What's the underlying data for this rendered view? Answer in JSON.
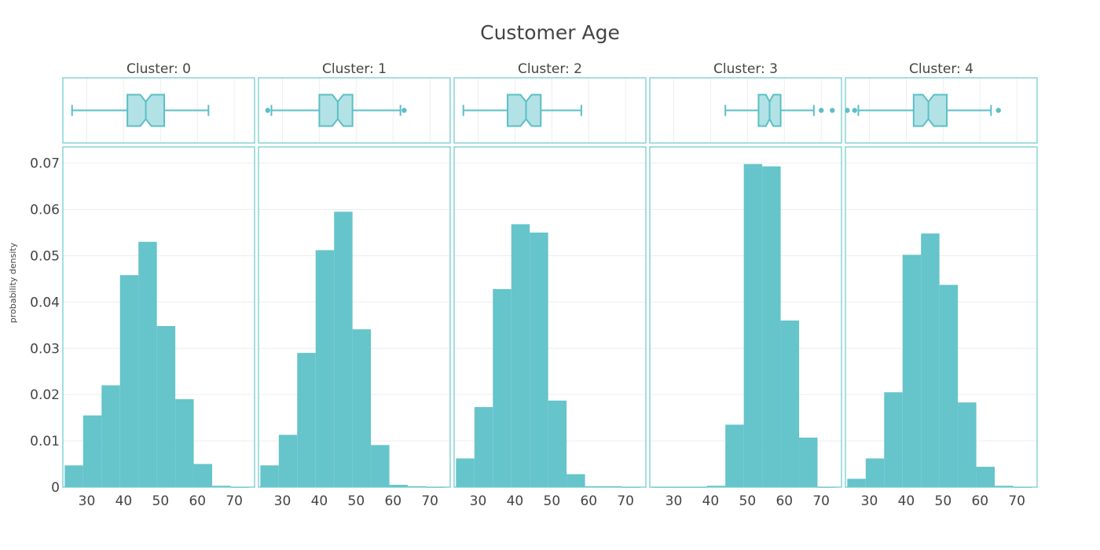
{
  "colors": {
    "bar": "#66c4cb",
    "box_fill": "#b3e2e6",
    "box_line": "#5bbfc6",
    "frame": "#6cc7cc",
    "grid": "#eeeeee"
  },
  "chart_data": {
    "type": "bar",
    "title": "Customer Age",
    "ylabel": "probability density",
    "xlim": [
      23.5,
      75.5
    ],
    "ylim": [
      0,
      0.0735
    ],
    "xticks": [
      30,
      40,
      50,
      60,
      70
    ],
    "yticks": [
      0,
      0.01,
      0.02,
      0.03,
      0.04,
      0.05,
      0.06,
      0.07
    ],
    "ytick_labels": [
      "0",
      "0.01",
      "0.02",
      "0.03",
      "0.04",
      "0.05",
      "0.06",
      "0.07"
    ],
    "bin_edges": [
      24,
      29,
      34,
      39,
      44,
      49,
      54,
      59,
      64,
      69,
      74
    ],
    "panels": [
      {
        "title": "Cluster: 0",
        "density": [
          0.0047,
          0.0155,
          0.022,
          0.0458,
          0.053,
          0.0348,
          0.019,
          0.005,
          0.0003,
          0
        ],
        "box": {
          "min": 26,
          "q1": 41,
          "median": 46,
          "q3": 51,
          "max": 63,
          "notch_low": 44.5,
          "notch_high": 47.5,
          "outliers": []
        }
      },
      {
        "title": "Cluster: 1",
        "density": [
          0.0047,
          0.0113,
          0.029,
          0.0512,
          0.0595,
          0.0341,
          0.0091,
          0.0005,
          0.0002,
          0
        ],
        "box": {
          "min": 27,
          "q1": 40,
          "median": 45,
          "q3": 49,
          "max": 62,
          "notch_low": 43.5,
          "notch_high": 46.5,
          "outliers": [
            26,
            63
          ]
        }
      },
      {
        "title": "Cluster: 2",
        "density": [
          0.0062,
          0.0173,
          0.0428,
          0.0568,
          0.055,
          0.0187,
          0.0028,
          0.0002,
          0.0002,
          0
        ],
        "box": {
          "min": 26,
          "q1": 38,
          "median": 43,
          "q3": 47,
          "max": 58,
          "notch_low": 41.5,
          "notch_high": 44.5,
          "outliers": []
        }
      },
      {
        "title": "Cluster: 3",
        "density": [
          0,
          0,
          0,
          0.0003,
          0.0135,
          0.0698,
          0.0693,
          0.036,
          0.0107,
          0
        ],
        "box": {
          "min": 44,
          "q1": 53,
          "median": 56,
          "q3": 59,
          "max": 68,
          "notch_low": 55,
          "notch_high": 57,
          "outliers": [
            70,
            73
          ]
        }
      },
      {
        "title": "Cluster: 4",
        "density": [
          0.0018,
          0.0062,
          0.0205,
          0.0502,
          0.0548,
          0.0437,
          0.0183,
          0.0044,
          0.0003,
          0
        ],
        "box": {
          "min": 27,
          "q1": 42,
          "median": 46,
          "q3": 51,
          "max": 63,
          "notch_low": 44.5,
          "notch_high": 47.5,
          "outliers": [
            24,
            26,
            65
          ]
        }
      }
    ]
  }
}
